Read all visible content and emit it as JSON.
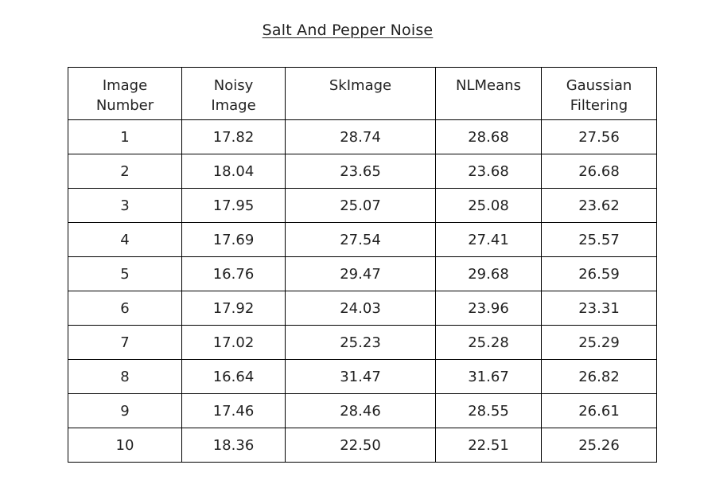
{
  "title": "Salt And Pepper Noise",
  "table": {
    "headers": [
      [
        "Image",
        "Number"
      ],
      [
        "Noisy",
        "Image"
      ],
      [
        "SkImage"
      ],
      [
        "NLMeans"
      ],
      [
        "Gaussian",
        "Filtering"
      ]
    ],
    "rows": [
      [
        "1",
        "17.82",
        "28.74",
        "28.68",
        "27.56"
      ],
      [
        "2",
        "18.04",
        "23.65",
        "23.68",
        "26.68"
      ],
      [
        "3",
        "17.95",
        "25.07",
        "25.08",
        "23.62"
      ],
      [
        "4",
        "17.69",
        "27.54",
        "27.41",
        "25.57"
      ],
      [
        "5",
        "16.76",
        "29.47",
        "29.68",
        "26.59"
      ],
      [
        "6",
        "17.92",
        "24.03",
        "23.96",
        "23.31"
      ],
      [
        "7",
        "17.02",
        "25.23",
        "25.28",
        "25.29"
      ],
      [
        "8",
        "16.64",
        "31.47",
        "31.67",
        "26.82"
      ],
      [
        "9",
        "17.46",
        "28.46",
        "28.55",
        "26.61"
      ],
      [
        "10",
        "18.36",
        "22.50",
        "22.51",
        "25.26"
      ]
    ]
  }
}
